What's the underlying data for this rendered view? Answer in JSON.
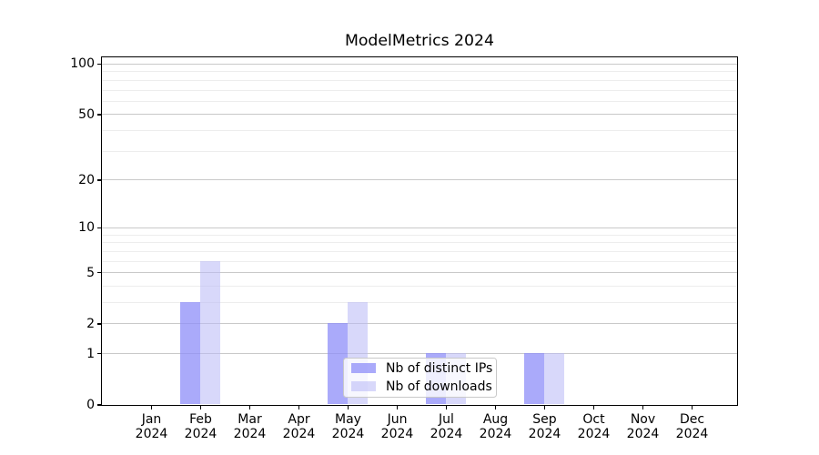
{
  "chart_data": {
    "type": "bar",
    "title": "ModelMetrics 2024",
    "categories": [
      "Jan",
      "Feb",
      "Mar",
      "Apr",
      "May",
      "Jun",
      "Jul",
      "Aug",
      "Sep",
      "Oct",
      "Nov",
      "Dec"
    ],
    "x_year_line": "2024",
    "series": [
      {
        "name": "Nb of distinct IPs",
        "color": "rgba(142,142,248,0.75)",
        "values": [
          0,
          3,
          0,
          0,
          2,
          0,
          1,
          0,
          1,
          0,
          0,
          0
        ]
      },
      {
        "name": "Nb of downloads",
        "color": "rgba(184,184,246,0.55)",
        "values": [
          0,
          6,
          0,
          0,
          3,
          0,
          1,
          0,
          1,
          0,
          0,
          0
        ]
      }
    ],
    "y_axis": {
      "scale": "log1p",
      "ticks": [
        0,
        1,
        2,
        5,
        10,
        20,
        50,
        100
      ],
      "minor_ticks": [
        3,
        4,
        6,
        7,
        8,
        9,
        30,
        40,
        60,
        70,
        80,
        90
      ],
      "lim": [
        0,
        109
      ]
    },
    "grid": {
      "major_color": "#c9c9c9",
      "minor_color": "#ededed",
      "on": true
    },
    "legend": {
      "position": "lower-center",
      "labels": [
        "Nb of distinct IPs",
        "Nb of downloads"
      ]
    },
    "style": {
      "spine_color": "#000000",
      "text_color": "#000000",
      "background": "#ffffff"
    }
  }
}
